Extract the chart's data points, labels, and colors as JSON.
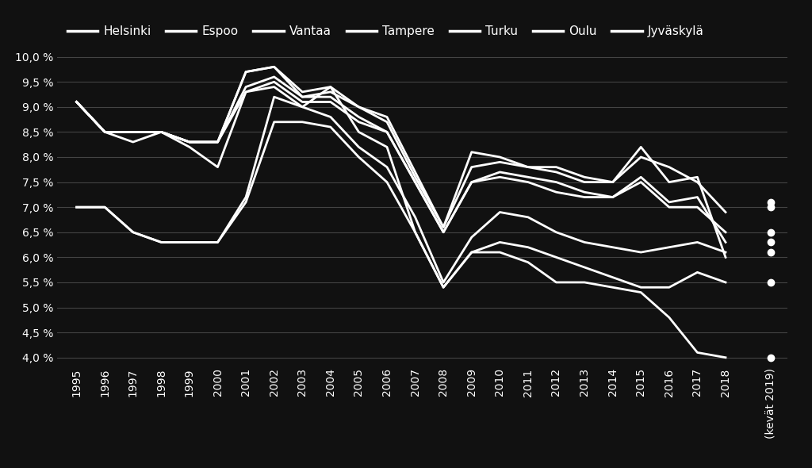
{
  "background_color": "#111111",
  "plot_bg_color": "#111111",
  "text_color": "#ffffff",
  "grid_color": "#444444",
  "legend_labels": [
    "Helsinki",
    "Espoo",
    "Vantaa",
    "Tampere",
    "Turku",
    "Oulu",
    "Jyväskylä"
  ],
  "years": [
    1995,
    1996,
    1997,
    1998,
    1999,
    2000,
    2001,
    2002,
    2003,
    2004,
    2005,
    2006,
    2007,
    2008,
    2009,
    2010,
    2011,
    2012,
    2013,
    2014,
    2015,
    2016,
    2017,
    2018
  ],
  "spring2019": [
    4.0,
    5.5,
    6.1,
    6.3,
    6.5,
    7.0,
    7.1
  ],
  "series": {
    "Helsinki": [
      9.1,
      8.5,
      8.3,
      8.5,
      8.2,
      7.8,
      9.3,
      9.4,
      9.0,
      9.4,
      8.5,
      8.2,
      6.5,
      5.4,
      6.1,
      6.1,
      5.9,
      5.5,
      5.5,
      5.4,
      5.3,
      4.8,
      4.1,
      4.0
    ],
    "Espoo": [
      7.0,
      7.0,
      6.5,
      6.3,
      6.3,
      6.3,
      7.1,
      8.7,
      8.7,
      8.6,
      8.0,
      7.5,
      6.5,
      5.4,
      6.1,
      6.3,
      6.2,
      6.0,
      5.8,
      5.6,
      5.4,
      5.4,
      5.7,
      5.5
    ],
    "Vantaa": [
      7.0,
      7.0,
      6.5,
      6.3,
      6.3,
      6.3,
      7.2,
      9.2,
      9.0,
      8.8,
      8.2,
      7.8,
      6.8,
      5.5,
      6.4,
      6.9,
      6.8,
      6.5,
      6.3,
      6.2,
      6.1,
      6.2,
      6.3,
      6.1
    ],
    "Tampere": [
      9.1,
      8.5,
      8.5,
      8.5,
      8.3,
      8.3,
      9.3,
      9.5,
      9.1,
      9.1,
      8.7,
      8.5,
      7.5,
      6.5,
      7.5,
      7.6,
      7.5,
      7.3,
      7.2,
      7.2,
      7.5,
      7.0,
      7.0,
      6.5
    ],
    "Turku": [
      9.1,
      8.5,
      8.5,
      8.5,
      8.3,
      8.3,
      9.4,
      9.6,
      9.2,
      9.2,
      8.8,
      8.5,
      7.5,
      6.5,
      7.5,
      7.7,
      7.6,
      7.5,
      7.3,
      7.2,
      7.6,
      7.1,
      7.2,
      6.3
    ],
    "Oulu": [
      9.1,
      8.5,
      8.5,
      8.5,
      8.3,
      8.3,
      9.7,
      9.8,
      9.2,
      9.3,
      9.0,
      8.7,
      7.6,
      6.6,
      7.8,
      7.9,
      7.8,
      7.7,
      7.5,
      7.5,
      8.2,
      7.5,
      7.6,
      6.0
    ],
    "Jyväskylä": [
      9.1,
      8.5,
      8.5,
      8.5,
      8.3,
      8.3,
      9.7,
      9.8,
      9.3,
      9.4,
      9.0,
      8.8,
      7.7,
      6.6,
      8.1,
      8.0,
      7.8,
      7.8,
      7.6,
      7.5,
      8.0,
      7.8,
      7.5,
      6.9
    ]
  },
  "ylim": [
    3.85,
    10.2
  ],
  "yticks": [
    4.0,
    4.5,
    5.0,
    5.5,
    6.0,
    6.5,
    7.0,
    7.5,
    8.0,
    8.5,
    9.0,
    9.5,
    10.0
  ],
  "ytick_labels": [
    "4,0 %",
    "4,5 %",
    "5,0 %",
    "5,5 %",
    "6,0 %",
    "6,5 %",
    "7,0 %",
    "7,5 %",
    "8,0 %",
    "8,5 %",
    "9,0 %",
    "9,5 %",
    "10,0 %"
  ],
  "line_width": 2.0,
  "marker_size": 6,
  "fontsize_ticks": 10,
  "fontsize_legend": 11
}
